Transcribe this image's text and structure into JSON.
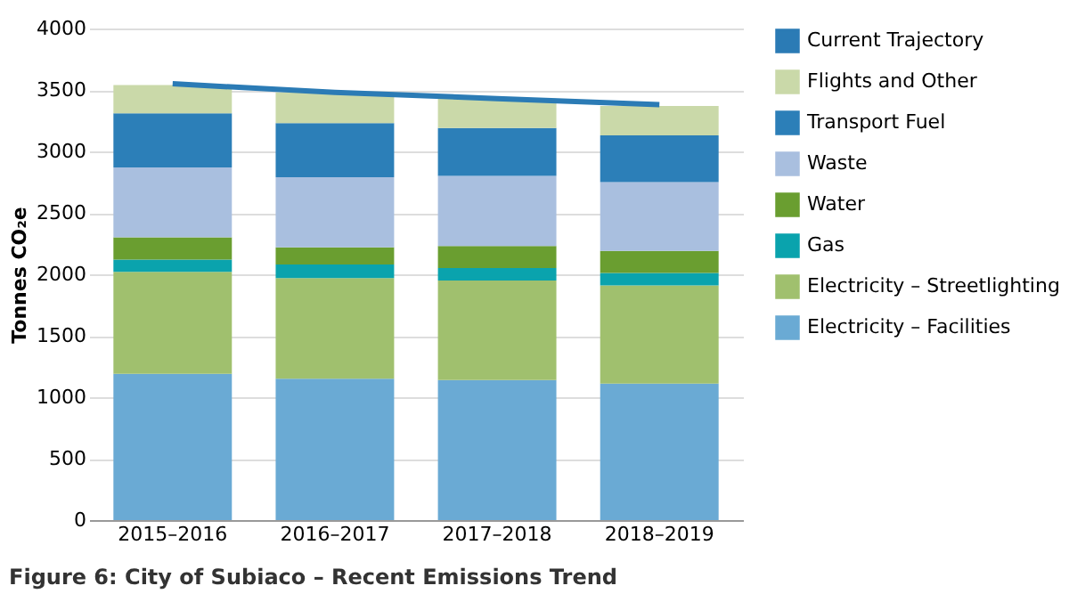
{
  "chart_data": {
    "type": "bar",
    "title": "Figure 6: City of Subiaco – Recent Emissions Trend",
    "ylabel": "Tonnes CO₂e",
    "categories": [
      "2015–2016",
      "2016–2017",
      "2017–2018",
      "2018–2019"
    ],
    "stacked": true,
    "series": [
      {
        "name": "Electricity – Facilities",
        "color": "#6aaad4",
        "values": [
          1190,
          1150,
          1140,
          1110
        ]
      },
      {
        "name": "Electricity – Streetlighting",
        "color": "#a0c06e",
        "values": [
          830,
          820,
          810,
          800
        ]
      },
      {
        "name": "Gas",
        "color": "#0aa3ad",
        "values": [
          100,
          110,
          100,
          100
        ]
      },
      {
        "name": "Water",
        "color": "#6a9e30",
        "values": [
          180,
          140,
          180,
          180
        ]
      },
      {
        "name": "Waste",
        "color": "#a9bfdf",
        "values": [
          570,
          570,
          570,
          560
        ]
      },
      {
        "name": "Transport Fuel",
        "color": "#2c7fb8",
        "values": [
          440,
          440,
          390,
          380
        ]
      },
      {
        "name": "Flights and Other",
        "color": "#cad9a9",
        "values": [
          230,
          250,
          240,
          240
        ]
      },
      {
        "name": "Current Trajectory",
        "type": "line",
        "color": "#2b7bb5",
        "values": [
          3550,
          3480,
          3430,
          3380
        ]
      }
    ],
    "ylim": [
      0,
      4000
    ],
    "yticks": [
      0,
      500,
      1000,
      1500,
      2000,
      2500,
      3000,
      3500,
      4000
    ],
    "grid": "y",
    "legend": "right"
  }
}
